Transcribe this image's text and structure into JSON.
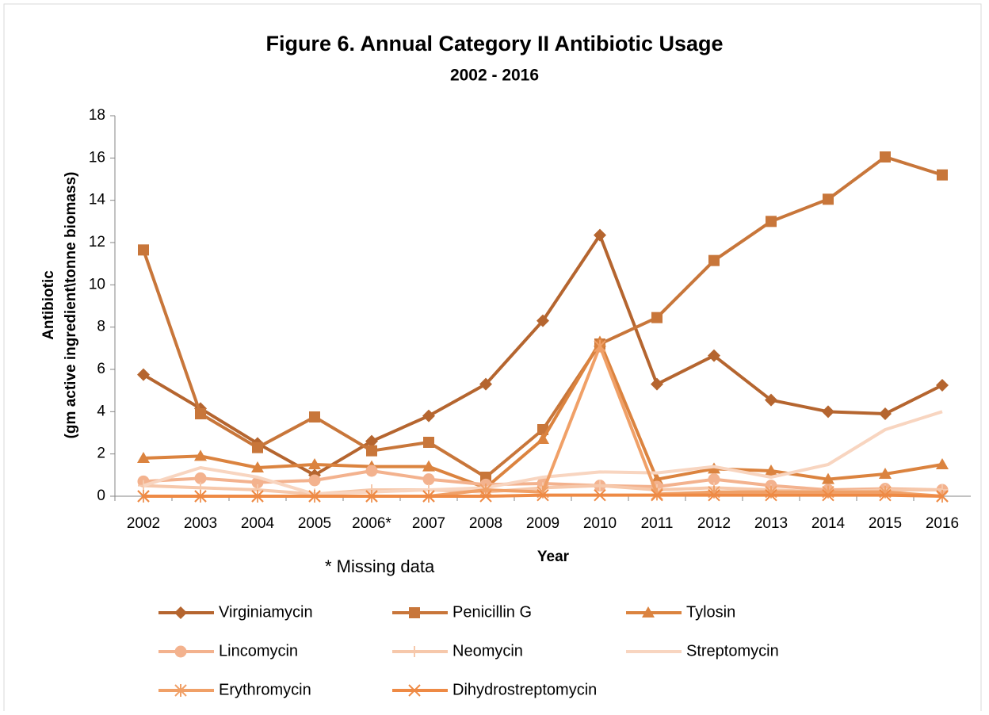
{
  "chart_data": {
    "type": "line",
    "title": "Figure 6. Annual Category II Antibiotic Usage",
    "subtitle": "2002 - 2016",
    "y_label": [
      "Antibiotic",
      "(gm active ingredient\\tonne biomass)"
    ],
    "x_label": "Year",
    "annotation": "*  Missing data",
    "categories": [
      "2002",
      "2003",
      "2004",
      "2005",
      "2006*",
      "2007",
      "2008",
      "2009",
      "2010",
      "2011",
      "2012",
      "2013",
      "2014",
      "2015",
      "2016"
    ],
    "ylim": [
      0,
      18
    ],
    "yticks": [
      0,
      2,
      4,
      6,
      8,
      10,
      12,
      14,
      16,
      18
    ],
    "grid": false,
    "legend": "bottom",
    "series": [
      {
        "name": "Virginiamycin",
        "color": "#b5652f",
        "marker": "diamond",
        "values": [
          5.75,
          4.15,
          2.5,
          1.0,
          2.6,
          3.8,
          5.3,
          8.3,
          12.35,
          5.3,
          6.65,
          4.55,
          4.0,
          3.9,
          5.25
        ]
      },
      {
        "name": "Penicillin G",
        "color": "#c8763a",
        "marker": "square",
        "values": [
          11.65,
          3.9,
          2.3,
          3.75,
          2.15,
          2.55,
          0.9,
          3.15,
          7.2,
          8.45,
          11.15,
          13.0,
          14.05,
          16.05,
          15.2
        ]
      },
      {
        "name": "Tylosin",
        "color": "#db833f",
        "marker": "triangle",
        "values": [
          1.8,
          1.9,
          1.35,
          1.5,
          1.4,
          1.4,
          0.4,
          2.7,
          7.3,
          0.8,
          1.3,
          1.2,
          0.8,
          1.05,
          1.5
        ]
      },
      {
        "name": "Lincomycin",
        "color": "#f3b28e",
        "marker": "circle",
        "values": [
          0.7,
          0.85,
          0.65,
          0.75,
          1.2,
          0.8,
          0.55,
          0.6,
          0.5,
          0.45,
          0.8,
          0.5,
          0.3,
          0.35,
          0.3
        ]
      },
      {
        "name": "Neomycin",
        "color": "#f6c8ab",
        "marker": "plus",
        "values": [
          0.5,
          0.4,
          0.3,
          0.1,
          0.3,
          0.3,
          0.2,
          0.4,
          0.5,
          0.3,
          0.4,
          0.3,
          0.2,
          0.3,
          0.3
        ]
      },
      {
        "name": "Streptomycin",
        "color": "#f8d5c0",
        "marker": "none",
        "values": [
          0.5,
          1.35,
          0.9,
          0.1,
          0.2,
          0.3,
          0.4,
          0.9,
          1.15,
          1.1,
          1.4,
          0.9,
          1.5,
          3.15,
          4.0
        ]
      },
      {
        "name": "Erythromycin",
        "color": "#f0a067",
        "marker": "asterisk",
        "values": [
          0,
          0,
          0,
          0,
          0,
          0,
          0.3,
          0.2,
          7.1,
          0.1,
          0.2,
          0.2,
          0.2,
          0.2,
          0
        ]
      },
      {
        "name": "Dihydrostreptomycin",
        "color": "#ee8a45",
        "marker": "x",
        "values": [
          0,
          0,
          0,
          0,
          0,
          0,
          0,
          0.05,
          0.05,
          0.05,
          0.05,
          0.05,
          0.05,
          0.05,
          0
        ]
      }
    ]
  }
}
